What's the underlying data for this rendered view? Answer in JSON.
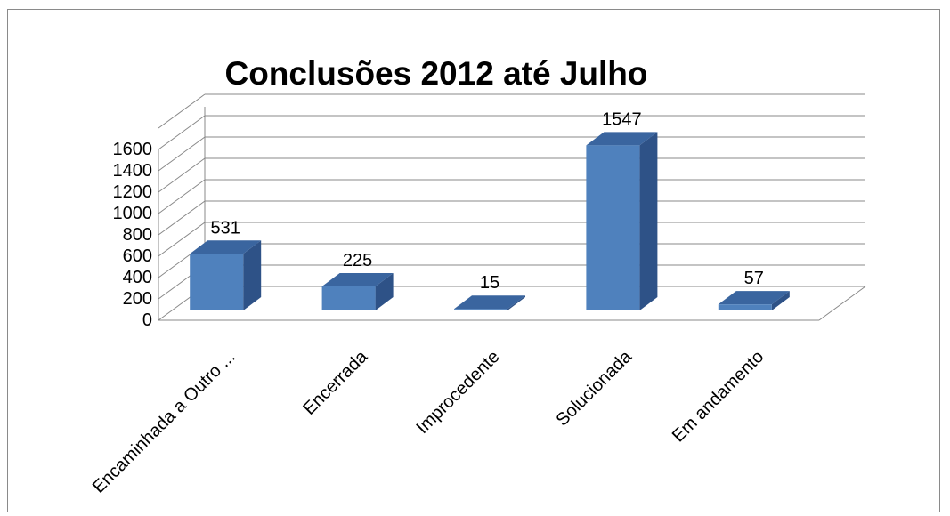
{
  "chart_data": {
    "type": "bar",
    "title": "Conclusões 2012 até Julho",
    "categories": [
      "Encaminhada a Outro ...",
      "Encerrada",
      "Improcedente",
      "Solucionada",
      "Em andamento"
    ],
    "values": [
      531,
      225,
      15,
      1547,
      57
    ],
    "ylim": [
      0,
      1600
    ],
    "yticks": [
      "0",
      "200",
      "400",
      "600",
      "800",
      "1000",
      "1200",
      "1400",
      "1600"
    ],
    "data_labels": [
      "531",
      "225",
      "15",
      "1547",
      "57"
    ],
    "legend": "none",
    "grid": true,
    "style": "3d-column",
    "colors": {
      "bar_front": "#4f81bd",
      "bar_side": "#2e5287",
      "bar_top": "#3a659f",
      "grid": "#888888"
    }
  }
}
